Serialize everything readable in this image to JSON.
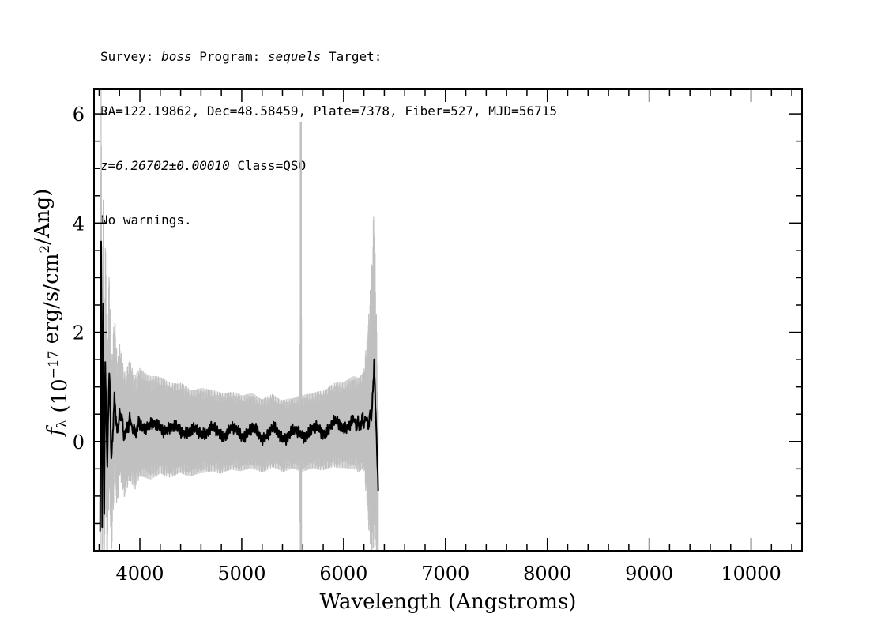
{
  "header": {
    "survey_label": "Survey: ",
    "survey": "boss",
    "program_label": " Program: ",
    "program": "sequels",
    "target_label": " Target:",
    "line2": "RA=122.19862, Dec=48.58459, Plate=7378, Fiber=527, MJD=56715",
    "redshift": "z=6.26702±0.00010",
    "class_text": " Class=QSO",
    "warnings": "No warnings."
  },
  "chart_data": {
    "type": "line",
    "xlabel": "Wavelength (Angstroms)",
    "ylabel": "f_λ (10^-17 erg/s/cm^2/Ang)",
    "xlim": [
      3550,
      10500
    ],
    "ylim": [
      -2.0,
      6.45
    ],
    "x_ticks": [
      4000,
      5000,
      6000,
      7000,
      8000,
      9000,
      10000
    ],
    "y_ticks": [
      0,
      2,
      4,
      6
    ],
    "grid": false,
    "series": [
      {
        "role": "flux",
        "color": "#000000",
        "x": [
          3610,
          3620,
          3630,
          3640,
          3650,
          3660,
          3680,
          3700,
          3720,
          3750,
          3780,
          3800,
          3850,
          3900,
          3950,
          4000,
          4100,
          4200,
          4300,
          4400,
          4500,
          4600,
          4700,
          4800,
          4900,
          5000,
          5100,
          5200,
          5300,
          5400,
          5500,
          5600,
          5700,
          5800,
          5900,
          6000,
          6100,
          6150,
          6200,
          6250,
          6280,
          6300,
          6320,
          6340
        ],
        "y": [
          -1.5,
          3.8,
          -1.5,
          2.7,
          -1.2,
          1.5,
          -0.4,
          1.3,
          -0.4,
          0.8,
          0.1,
          0.6,
          0.1,
          0.4,
          0.15,
          0.35,
          0.25,
          0.3,
          0.2,
          0.25,
          0.15,
          0.2,
          0.2,
          0.15,
          0.2,
          0.15,
          0.2,
          0.1,
          0.2,
          0.1,
          0.15,
          0.15,
          0.2,
          0.2,
          0.3,
          0.3,
          0.35,
          0.3,
          0.4,
          0.35,
          0.6,
          1.35,
          0.2,
          -0.9
        ]
      },
      {
        "role": "noise",
        "color": "#c0c0c0",
        "x": [
          3610,
          3630,
          3650,
          3680,
          3720,
          3800,
          3900,
          4000,
          4200,
          4500,
          5000,
          5500,
          5570,
          5580,
          5590,
          5700,
          6000,
          6200,
          6300,
          6340
        ],
        "y": [
          4.0,
          2.2,
          2.5,
          2.2,
          1.8,
          1.2,
          1.1,
          1.0,
          0.9,
          0.8,
          0.7,
          0.65,
          0.7,
          5.85,
          0.7,
          0.7,
          0.8,
          0.9,
          3.2,
          1.5
        ]
      }
    ]
  }
}
